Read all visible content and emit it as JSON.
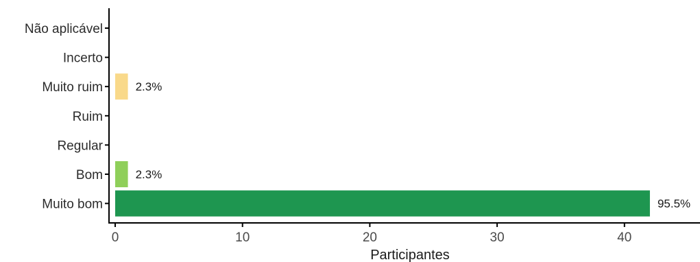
{
  "chart_data": {
    "type": "bar",
    "orientation": "horizontal",
    "categories": [
      "Não aplicável",
      "Incerto",
      "Muito ruim",
      "Ruim",
      "Regular",
      "Bom",
      "Muito bom"
    ],
    "values": [
      0,
      0,
      1,
      0,
      0,
      1,
      42
    ],
    "data_labels": [
      "",
      "",
      "2.3%",
      "",
      "",
      "2.3%",
      "95.5%"
    ],
    "colors": [
      "#ffffff",
      "#ffffff",
      "#f9d98a",
      "#ffffff",
      "#ffffff",
      "#8fcf5a",
      "#1e9650"
    ],
    "xlabel": "Participantes",
    "ylabel": "",
    "xlim": [
      0,
      45
    ],
    "x_ticks": [
      0,
      10,
      20,
      30,
      40
    ],
    "grid": false
  }
}
